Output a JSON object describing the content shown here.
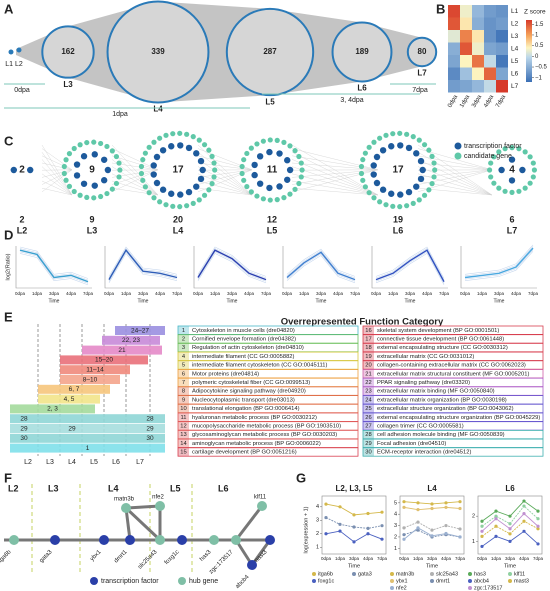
{
  "panels": {
    "a": {
      "label": "A",
      "small_label": "L1 L2",
      "clusters": [
        {
          "name": "L3",
          "count": 162
        },
        {
          "name": "L4",
          "count": 339
        },
        {
          "name": "L5",
          "count": 287
        },
        {
          "name": "L6",
          "count": 189
        },
        {
          "name": "L7",
          "count": 80
        }
      ],
      "stages": [
        "0dpa",
        "1dpa",
        "3, 4dpa",
        "7dpa"
      ]
    },
    "b": {
      "label": "B",
      "title": "Z score",
      "rows": [
        "L1",
        "L2",
        "L3",
        "L4",
        "L5",
        "L6",
        "L7"
      ],
      "columns": [
        "0dpa",
        "1dpa",
        "3dpa",
        "4dpa",
        "7dpa"
      ],
      "values": [
        [
          1.6,
          0.3,
          -0.4,
          -0.7,
          -0.8
        ],
        [
          1.5,
          0.5,
          -0.5,
          -0.8,
          -0.7
        ],
        [
          0.2,
          1.2,
          0.5,
          -0.8,
          -1.1
        ],
        [
          -0.5,
          1.5,
          0.3,
          -0.6,
          -0.7
        ],
        [
          -0.6,
          0.4,
          1.3,
          0.0,
          -1.1
        ],
        [
          -0.9,
          -0.3,
          0.4,
          1.4,
          -0.6
        ],
        [
          -0.7,
          -0.6,
          -0.4,
          0.0,
          1.7
        ]
      ],
      "colorbar_lim": [
        -1.2,
        1.7
      ],
      "colorbar_ticks": [
        1.5,
        1,
        0.5,
        0,
        {
          "value": -0.5,
          "label": "−0.5"
        },
        {
          "value": -1,
          "label": "−1"
        }
      ]
    },
    "c": {
      "label": "C",
      "clusters": [
        {
          "inner": 2,
          "total": 2,
          "level": "L2"
        },
        {
          "inner": 9,
          "total": 9,
          "level": "L3"
        },
        {
          "inner": 17,
          "total": 20,
          "level": "L4"
        },
        {
          "inner": 11,
          "total": 12,
          "level": "L5"
        },
        {
          "inner": 17,
          "total": 19,
          "level": "L6"
        },
        {
          "inner": 4,
          "total": 6,
          "level": "L7"
        }
      ],
      "legend": [
        "transcription factor",
        "candidate gene"
      ]
    },
    "d": {
      "label": "D",
      "y_label": "log2(Ratio)",
      "x_label": "Time",
      "x": [
        "0dpa",
        "1dpa",
        "3dpa",
        "4dpa",
        "7dpa"
      ],
      "ylim": [
        -1,
        1
      ],
      "profiles": [
        [
          0.8,
          0.6,
          -0.5,
          -0.4,
          -0.7
        ],
        [
          -0.6,
          0.8,
          -0.2,
          -0.3,
          -0.5
        ],
        [
          -0.5,
          0.8,
          0.4,
          -0.3,
          -0.6
        ],
        [
          -0.5,
          0.2,
          0.7,
          -0.3,
          -0.6
        ],
        [
          -0.6,
          -0.3,
          0.3,
          0.8,
          -0.7
        ],
        [
          -0.5,
          -0.4,
          -0.3,
          0.0,
          0.9
        ]
      ]
    },
    "e": {
      "label": "E",
      "title": "Overrepresented Function Category",
      "x_labels": [
        "L2",
        "L3",
        "L4",
        "L5",
        "L6",
        "L7"
      ],
      "bars": [
        {
          "label": "24–27",
          "color": "#9a8fe0"
        },
        {
          "label": "22, 23",
          "color": "#c88ad8"
        },
        {
          "label": "21",
          "color": "#e48ac8"
        },
        {
          "label": "15–20",
          "color": "#e9707a"
        },
        {
          "label": "11–14",
          "color": "#f08a7c"
        },
        {
          "label": "8–10",
          "color": "#f4a48c"
        },
        {
          "label": "6, 7",
          "color": "#f6c57c"
        },
        {
          "label": "4, 5",
          "color": "#f2e48a"
        },
        {
          "label": "2, 3",
          "color": "#a4da9c"
        },
        {
          "label": "28",
          "color": "#8fd6d6"
        },
        {
          "label": "29",
          "color": "#a6dede"
        },
        {
          "label": "30",
          "color": "#8fd6d6"
        },
        {
          "label": "1",
          "color": "#7fe0ea"
        }
      ],
      "categories": [
        {
          "id": 1,
          "name": "Cytoskeleton in muscle cells (dre04820)",
          "color": "#49b8c8"
        },
        {
          "id": 2,
          "name": "Cornified envelope formation (dre04382)",
          "color": "#6cbf5c"
        },
        {
          "id": 3,
          "name": "Regulation of actin cytoskeleton (dre04810)",
          "color": "#6cbf5c"
        },
        {
          "id": 4,
          "name": "intermediate filament (CC GO:0005882)",
          "color": "#d8c840"
        },
        {
          "id": 5,
          "name": "intermediate filament cytoskeleton (CC GO:0045111)",
          "color": "#d8c840"
        },
        {
          "id": 6,
          "name": "Motor proteins (dre04814)",
          "color": "#eea040"
        },
        {
          "id": 7,
          "name": "polymeric cytoskeletal fiber (CC GO:0099513)",
          "color": "#eea040"
        },
        {
          "id": 8,
          "name": "Adipocytokine signaling pathway (dre04920)",
          "color": "#e0704a"
        },
        {
          "id": 9,
          "name": "Nucleocytoplasmic transport (dre03013)",
          "color": "#e0704a"
        },
        {
          "id": 10,
          "name": "translational elongation (BP GO:0006414)",
          "color": "#e0704a"
        },
        {
          "id": 11,
          "name": "hyaluronan metabolic process (BP GO:0030212)",
          "color": "#e05a5a"
        },
        {
          "id": 12,
          "name": "mucopolysaccharide metabolic process (BP GO:1903510)",
          "color": "#e05a5a"
        },
        {
          "id": 13,
          "name": "glycosaminoglycan metabolic process (BP GO:0030203)",
          "color": "#e05a5a"
        },
        {
          "id": 14,
          "name": "aminoglycan metabolic process (BP GO:0006022)",
          "color": "#e05a5a"
        },
        {
          "id": 15,
          "name": "cartilage development (BP GO:0051216)",
          "color": "#d84050"
        },
        {
          "id": 16,
          "name": "skeletal system development (BP GO:0001501)",
          "color": "#d84050"
        },
        {
          "id": 17,
          "name": "connective tissue development (BP GO:0061448)",
          "color": "#d84050"
        },
        {
          "id": 18,
          "name": "external encapsulating structure (CC GO:0030312)",
          "color": "#d84050"
        },
        {
          "id": 19,
          "name": "extracellular matrix (CC GO:0031012)",
          "color": "#d84050"
        },
        {
          "id": 20,
          "name": "collagen-containing extracellular matrix (CC GO:0062023)",
          "color": "#d84050"
        },
        {
          "id": 21,
          "name": "extracellular matrix structural constituent (MF GO:0005201)",
          "color": "#d060a8"
        },
        {
          "id": 22,
          "name": "PPAR signaling pathway (dre03320)",
          "color": "#b060c8"
        },
        {
          "id": 23,
          "name": "extracellular matrix binding (MF GO:0050840)",
          "color": "#b060c8"
        },
        {
          "id": 24,
          "name": "extracellular matrix organization (BP GO:0030198)",
          "color": "#6a5ad0"
        },
        {
          "id": 25,
          "name": "extracellular structure organization (BP GO:0043062)",
          "color": "#6a5ad0"
        },
        {
          "id": 26,
          "name": "external encapsulating structure organization (BP GO:0045229)",
          "color": "#6a5ad0"
        },
        {
          "id": 27,
          "name": "collagen trimer (CC GO:0005581)",
          "color": "#6a5ad0"
        },
        {
          "id": 28,
          "name": "cell adhesion molecule binding (MF GO:0050839)",
          "color": "#40b0b0"
        },
        {
          "id": 29,
          "name": "Focal adhesion (dre04510)",
          "color": "#40b0b0"
        },
        {
          "id": 30,
          "name": "ECM-receptor interaction (dre04512)",
          "color": "#40b0b0"
        }
      ]
    },
    "f": {
      "label": "F",
      "levels": [
        "L2",
        "L3",
        "L4",
        "L5",
        "L6"
      ],
      "genes": [
        "itga6b",
        "gata3",
        "ybx1",
        "dmrt1",
        "matn3b",
        "nfe2",
        "slc25a43",
        "foxg1c",
        "has3",
        "zgc:173517",
        "klf11",
        "mast3",
        "abcb4"
      ],
      "legend": [
        "transcription factor",
        "hub gene"
      ]
    },
    "g": {
      "label": "G",
      "y_label": "log(expression + 1)",
      "x_label": "Time",
      "x": [
        "0dpa",
        "1dpa",
        "3dpa",
        "4dpa",
        "7dpa"
      ],
      "charts": [
        {
          "title": "L2, L3, L5",
          "ylim": [
            0.5,
            4.8
          ],
          "yticks": [
            1,
            2,
            3,
            4
          ],
          "series": [
            {
              "name": "itga6b",
              "color": "#d4b84a",
              "values": [
                4.2,
                4.0,
                3.4,
                3.5,
                3.6
              ]
            },
            {
              "name": "gata3",
              "color": "#7a8fb0",
              "values": [
                3.2,
                2.7,
                2.5,
                2.4,
                2.6
              ]
            },
            {
              "name": "foxg1c",
              "color": "#4a60c0",
              "values": [
                2.0,
                2.2,
                1.4,
                2.0,
                1.6
              ]
            }
          ]
        },
        {
          "title": "L4",
          "ylim": [
            0.5,
            5.6
          ],
          "yticks": [
            1,
            2,
            3,
            4,
            5
          ],
          "series": [
            {
              "name": "matn3b",
              "color": "#d4b84a",
              "values": [
                5.1,
                5.0,
                4.9,
                5.0,
                5.1
              ]
            },
            {
              "name": "slc25a43",
              "color": "#b0b0b0",
              "values": [
                2.8,
                3.3,
                2.6,
                3.0,
                2.7
              ]
            },
            {
              "name": "ybx1",
              "color": "#e0c070",
              "values": [
                4.6,
                4.4,
                4.5,
                4.6,
                4.5
              ]
            },
            {
              "name": "dmrt1",
              "color": "#7a8fb0",
              "values": [
                2.2,
                2.6,
                2.0,
                2.2,
                2.0
              ]
            },
            {
              "name": "nfe2",
              "color": "#9ab0d0",
              "values": [
                1.8,
                2.8,
                2.1,
                2.3,
                2.0
              ]
            }
          ]
        },
        {
          "title": "L6",
          "ylim": [
            0.5,
            2.8
          ],
          "yticks": [
            1,
            2
          ],
          "series": [
            {
              "name": "has3",
              "color": "#5aaa5a",
              "values": [
                1.8,
                2.2,
                2.0,
                2.6,
                2.2
              ]
            },
            {
              "name": "klf11",
              "color": "#8fd0a0",
              "values": [
                1.6,
                2.0,
                1.7,
                2.4,
                1.9
              ]
            },
            {
              "name": "abcb4",
              "color": "#4a60c0",
              "values": [
                0.8,
                1.2,
                1.0,
                1.4,
                0.9
              ]
            },
            {
              "name": "mast3",
              "color": "#d4b84a",
              "values": [
                1.2,
                1.6,
                1.3,
                1.8,
                1.5
              ]
            },
            {
              "name": "zgc:173517",
              "color": "#c090d0",
              "values": [
                1.4,
                1.9,
                1.5,
                2.1,
                1.6
              ]
            }
          ]
        }
      ]
    }
  }
}
